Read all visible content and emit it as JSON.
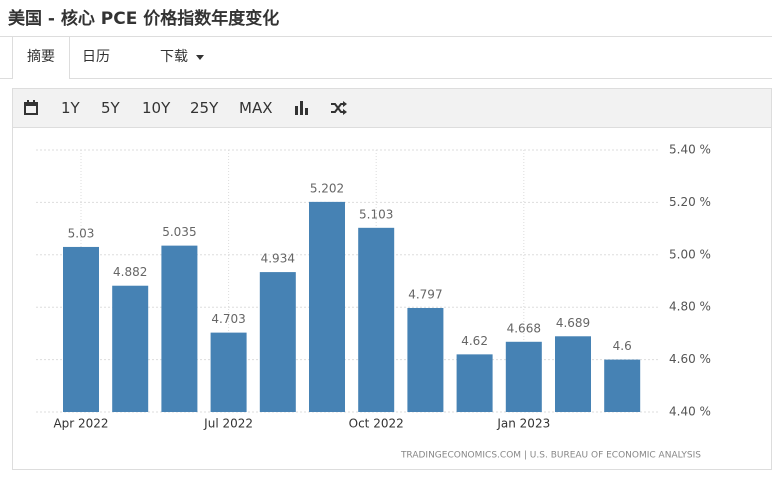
{
  "header": {
    "title": "美国 - 核心 PCE 价格指数年度变化"
  },
  "tabs": [
    "摘要",
    "日历",
    "下载"
  ],
  "toolbar": {
    "ranges": [
      "1Y",
      "5Y",
      "10Y",
      "25Y",
      "MAX"
    ]
  },
  "chart_data": {
    "type": "bar",
    "categories": [
      "Apr 2022",
      null,
      null,
      "Jul 2022",
      null,
      null,
      "Oct 2022",
      null,
      null,
      "Jan 2023",
      null,
      null
    ],
    "values": [
      5.03,
      4.882,
      5.035,
      4.703,
      4.934,
      5.202,
      5.103,
      4.797,
      4.62,
      4.668,
      4.689,
      4.6
    ],
    "color": "#4682b4",
    "ylim": [
      4.4,
      5.4
    ],
    "yticks": [
      {
        "value": 4.4,
        "label": "4.40 %"
      },
      {
        "value": 4.6,
        "label": "4.60 %"
      },
      {
        "value": 4.8,
        "label": "4.80 %"
      },
      {
        "value": 5.0,
        "label": "5.00 %"
      },
      {
        "value": 5.2,
        "label": "5.20 %"
      },
      {
        "value": 5.4,
        "label": "5.40 %"
      }
    ],
    "grid": true,
    "source": "TRADINGECONOMICS.COM | U.S. BUREAU OF ECONOMIC ANALYSIS"
  }
}
